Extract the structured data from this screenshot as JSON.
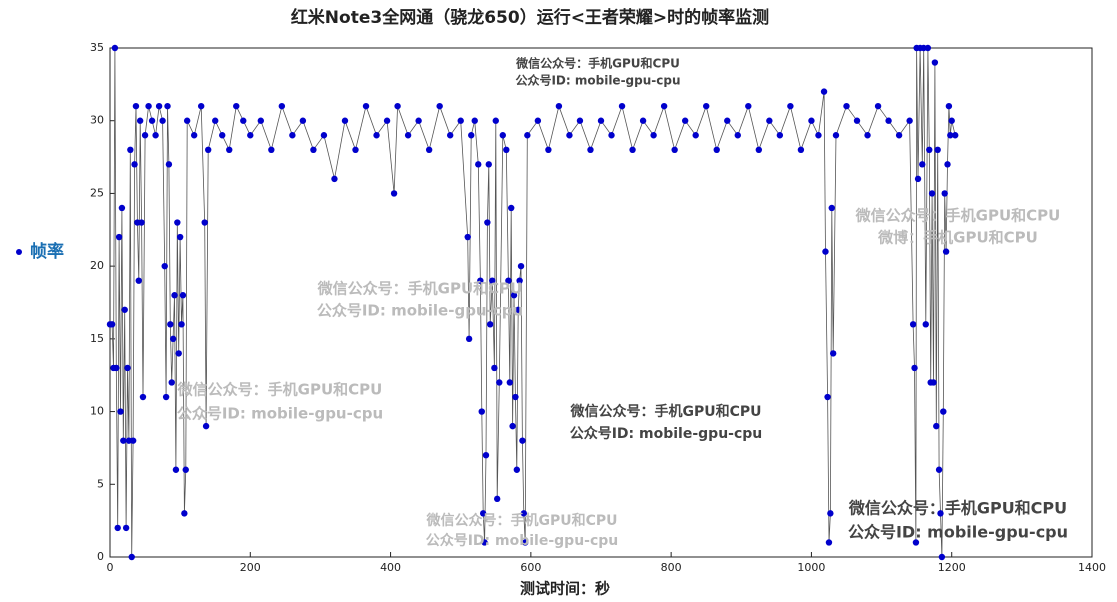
{
  "chart_data": {
    "type": "line",
    "title": "红米Note3全网通（骁龙650）运行<王者荣耀>时的帧率监测",
    "x_label": "测试时间：秒",
    "series": [
      {
        "name": "帧率",
        "color": "#0000cc",
        "line_color": "#555555",
        "x": [
          0,
          3,
          5,
          7,
          9,
          11,
          13,
          15,
          17,
          19,
          21,
          23,
          25,
          27,
          29,
          31,
          33,
          35,
          37,
          39,
          41,
          43,
          45,
          47,
          50,
          55,
          60,
          65,
          70,
          75,
          78,
          80,
          82,
          84,
          86,
          88,
          90,
          92,
          94,
          96,
          98,
          100,
          102,
          104,
          106,
          108,
          110,
          120,
          130,
          135,
          137,
          140,
          150,
          160,
          170,
          180,
          190,
          200,
          215,
          230,
          245,
          260,
          275,
          290,
          305,
          320,
          335,
          350,
          365,
          380,
          395,
          405,
          410,
          425,
          440,
          455,
          470,
          485,
          500,
          510,
          512,
          515,
          520,
          525,
          528,
          530,
          532,
          534,
          536,
          538,
          540,
          542,
          545,
          548,
          550,
          552,
          555,
          560,
          565,
          568,
          570,
          572,
          574,
          576,
          578,
          580,
          582,
          584,
          586,
          588,
          590,
          592,
          595,
          610,
          625,
          640,
          655,
          670,
          685,
          700,
          715,
          730,
          745,
          760,
          775,
          790,
          805,
          820,
          835,
          850,
          865,
          880,
          895,
          910,
          925,
          940,
          955,
          970,
          985,
          1000,
          1010,
          1018,
          1020,
          1023,
          1025,
          1027,
          1029,
          1031,
          1035,
          1050,
          1065,
          1080,
          1095,
          1110,
          1125,
          1140,
          1145,
          1147,
          1149,
          1150,
          1152,
          1155,
          1158,
          1160,
          1163,
          1166,
          1168,
          1170,
          1172,
          1174,
          1176,
          1178,
          1180,
          1182,
          1184,
          1186,
          1188,
          1190,
          1192,
          1194,
          1196,
          1198,
          1200,
          1205
        ],
        "values": [
          16,
          16,
          13,
          35,
          13,
          2,
          22,
          10,
          24,
          8,
          17,
          2,
          13,
          8,
          28,
          0,
          8,
          27,
          31,
          23,
          19,
          30,
          23,
          11,
          29,
          31,
          30,
          29,
          31,
          30,
          20,
          11,
          31,
          27,
          16,
          12,
          15,
          18,
          6,
          23,
          14,
          22,
          16,
          18,
          3,
          6,
          30,
          29,
          31,
          23,
          9,
          28,
          30,
          29,
          28,
          31,
          30,
          29,
          30,
          28,
          31,
          29,
          30,
          28,
          29,
          26,
          30,
          28,
          31,
          29,
          30,
          25,
          31,
          29,
          30,
          28,
          31,
          29,
          30,
          22,
          15,
          29,
          30,
          27,
          19,
          10,
          3,
          1,
          7,
          23,
          27,
          16,
          19,
          13,
          30,
          4,
          12,
          29,
          28,
          19,
          12,
          24,
          9,
          18,
          11,
          6,
          17,
          19,
          20,
          8,
          3,
          1,
          29,
          30,
          28,
          31,
          29,
          30,
          28,
          30,
          29,
          31,
          28,
          30,
          29,
          31,
          28,
          30,
          29,
          31,
          28,
          30,
          29,
          31,
          28,
          30,
          29,
          31,
          28,
          30,
          29,
          32,
          21,
          11,
          1,
          3,
          24,
          14,
          29,
          31,
          30,
          29,
          31,
          30,
          29,
          30,
          16,
          13,
          1,
          35,
          26,
          35,
          27,
          35,
          16,
          35,
          28,
          12,
          25,
          12,
          34,
          9,
          28,
          6,
          3,
          0,
          10,
          25,
          21,
          27,
          31,
          29,
          30,
          29
        ]
      }
    ],
    "xlim": [
      0,
      1400
    ],
    "xticks": [
      0,
      200,
      400,
      600,
      800,
      1000,
      1200,
      1400
    ],
    "ylim": [
      0,
      35
    ],
    "yticks": [
      0,
      5,
      10,
      15,
      20,
      25,
      30,
      35
    ],
    "annotations": [
      "微信公众号：手机GPU和CPU",
      "公众号ID: mobile-gpu-cpu",
      "微信公众号：手机GPU和CPU",
      "微博：手机GPU和CPU",
      "微信公众号：手机GPU和CPU",
      "公众号ID: mobile-gpu-cpu",
      "微信公众号：手机GPU和CPU",
      "公众号ID: mobile-gpu-cpu",
      "微信公众号：手机GPU和CPU",
      "公众号ID: mobile-gpu-cpu",
      "微信公众号：手机GPU和CPU",
      "公众号ID: mobile-gpu-cpu",
      "微信公众号：手机GPU和CPU",
      "公众号ID: mobile-gpu-cpu"
    ]
  }
}
